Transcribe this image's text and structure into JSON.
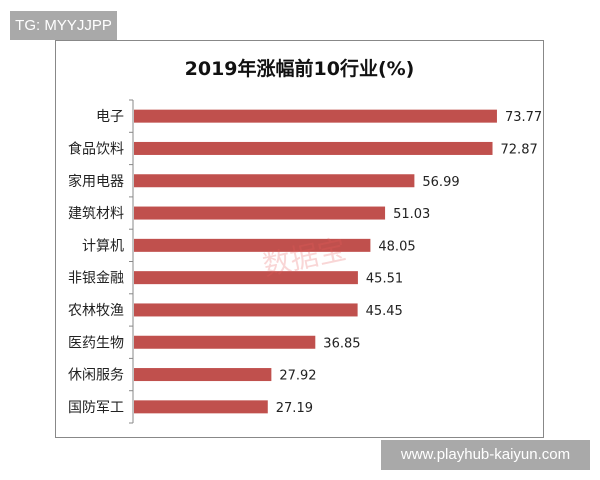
{
  "badge_top": "TG: MYYJJPP",
  "badge_bottom": "www.playhub-kaiyun.com",
  "stamp": "数据宝",
  "chart_data": {
    "type": "bar",
    "orientation": "horizontal",
    "title": "2019年涨幅前10行业(%)",
    "categories": [
      "电子",
      "食品饮料",
      "家用电器",
      "建筑材料",
      "计算机",
      "非银金融",
      "农林牧渔",
      "医药生物",
      "休闲服务",
      "国防军工"
    ],
    "values": [
      73.77,
      72.87,
      56.99,
      51.03,
      48.05,
      45.51,
      45.45,
      36.85,
      27.92,
      27.19
    ],
    "data_labels": [
      "73.77",
      "72.87",
      "56.99",
      "51.03",
      "48.05",
      "45.51",
      "45.45",
      "36.85",
      "27.92",
      "27.19"
    ],
    "bar_color": "#c0504d",
    "grid": false,
    "legend": "none"
  }
}
